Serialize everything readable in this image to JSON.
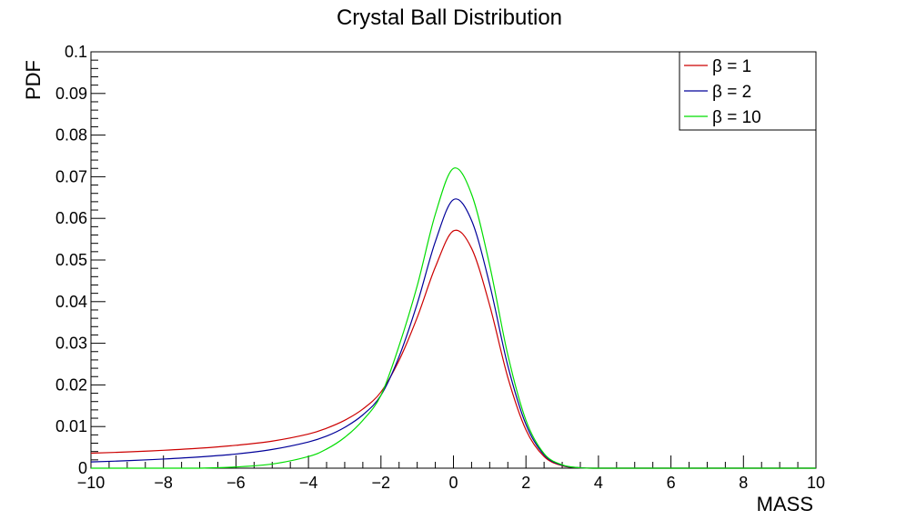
{
  "chart_data": {
    "type": "line",
    "title": "Crystal Ball Distribution",
    "xlabel": "MASS",
    "ylabel": "PDF",
    "xlim": [
      -10,
      10
    ],
    "ylim": [
      0,
      0.1
    ],
    "x_ticks": [
      -10,
      -8,
      -6,
      -4,
      -2,
      0,
      2,
      4,
      6,
      8,
      10
    ],
    "x_tick_labels": [
      "−10",
      "−8",
      "−6",
      "−4",
      "−2",
      "0",
      "2",
      "4",
      "6",
      "8",
      "10"
    ],
    "y_ticks": [
      0,
      0.01,
      0.02,
      0.03,
      0.04,
      0.05,
      0.06,
      0.07,
      0.08,
      0.09,
      0.1
    ],
    "y_tick_labels": [
      "0",
      "0.01",
      "0.02",
      "0.03",
      "0.04",
      "0.05",
      "0.06",
      "0.07",
      "0.08",
      "0.09",
      "0.1"
    ],
    "grid": false,
    "legend_position": "top-right",
    "x": [
      -10,
      -9,
      -8,
      -7,
      -6,
      -5,
      -4,
      -3.5,
      -3,
      -2.5,
      -2,
      -1.5,
      -1,
      -0.5,
      0,
      0.5,
      1,
      1.5,
      2,
      2.5,
      3,
      3.5,
      4,
      6,
      8,
      10
    ],
    "series": [
      {
        "name": "β = 1",
        "color": "#cc0000",
        "values": [
          0.0036,
          0.0039,
          0.0043,
          0.0048,
          0.0055,
          0.0065,
          0.0082,
          0.0096,
          0.0115,
          0.0142,
          0.0183,
          0.0259,
          0.0362,
          0.0483,
          0.057,
          0.0528,
          0.0391,
          0.0218,
          0.0092,
          0.0028,
          0.0006,
          0.0001,
          0.0,
          0.0,
          0.0,
          0.0
        ]
      },
      {
        "name": "β = 2",
        "color": "#000099",
        "values": [
          0.0015,
          0.0018,
          0.0022,
          0.0027,
          0.0034,
          0.0045,
          0.0063,
          0.0077,
          0.0098,
          0.0128,
          0.0175,
          0.0268,
          0.0395,
          0.0544,
          0.0645,
          0.0595,
          0.0441,
          0.0246,
          0.0105,
          0.0032,
          0.0007,
          0.0001,
          0.0,
          0.0,
          0.0,
          0.0
        ]
      },
      {
        "name": "β = 10",
        "color": "#00dd00",
        "values": [
          0.0,
          0.0,
          0.0,
          0.0,
          0.0003,
          0.001,
          0.0028,
          0.0046,
          0.0074,
          0.0115,
          0.0175,
          0.0294,
          0.0438,
          0.061,
          0.072,
          0.0658,
          0.0487,
          0.0272,
          0.0115,
          0.0035,
          0.0008,
          0.0001,
          0.0,
          0.0,
          0.0,
          0.0
        ]
      }
    ]
  }
}
